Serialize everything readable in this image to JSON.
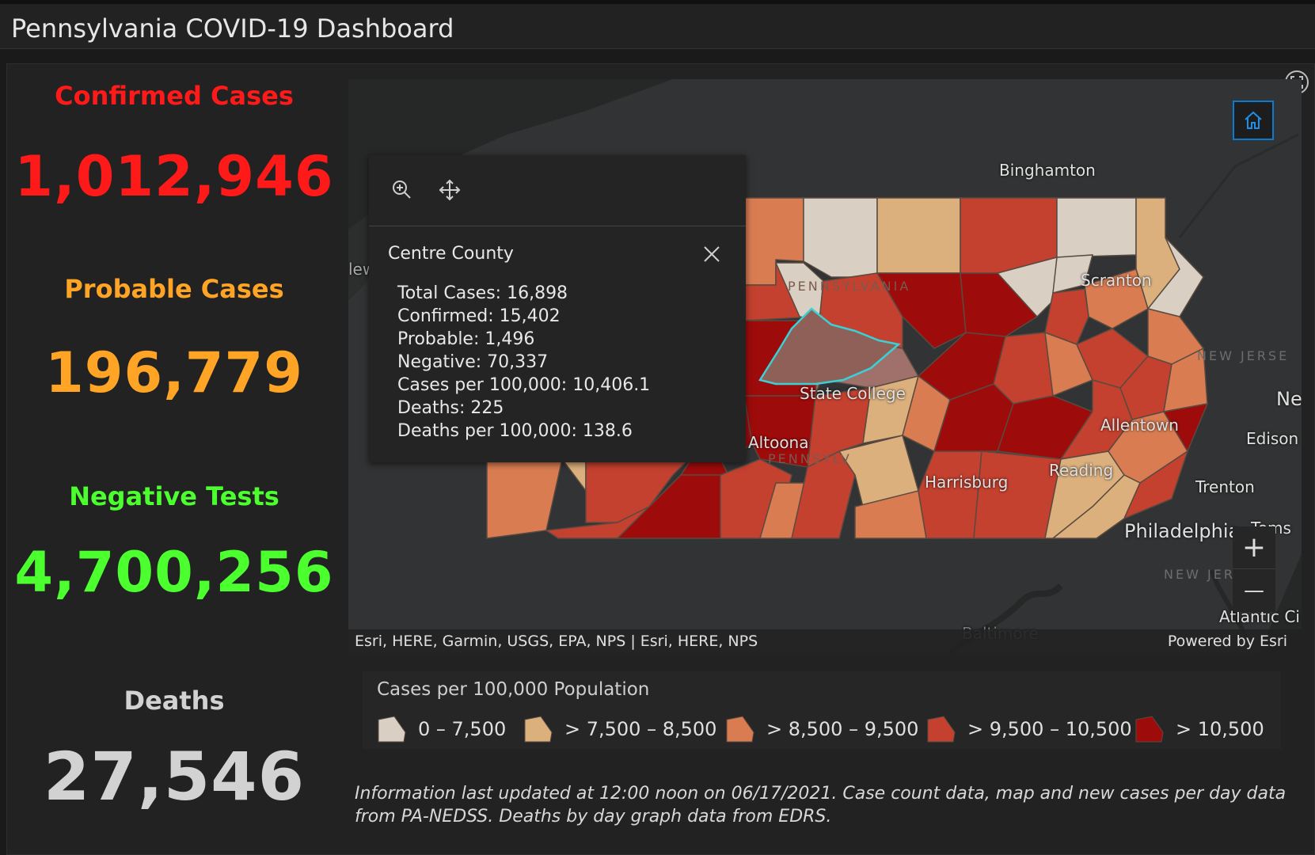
{
  "header": {
    "title": "Pennsylvania COVID-19 Dashboard"
  },
  "stats": [
    {
      "label": "Confirmed Cases",
      "value": "1,012,946",
      "color": "#ff1a1a"
    },
    {
      "label": "Probable Cases",
      "value": "196,779",
      "color": "#ffa424"
    },
    {
      "label": "Negative Tests",
      "value": "4,700,256",
      "color": "#4cff2e"
    },
    {
      "label": "Deaths",
      "value": "27,546",
      "color": "#d2d2d2"
    }
  ],
  "map": {
    "labels": {
      "binghamton": "Binghamton",
      "scranton": "Scranton",
      "state_college": "State College",
      "altoona": "Altoona",
      "harrisburg": "Harrisburg",
      "reading": "Reading",
      "allentown": "Allentown",
      "edison": "Edison",
      "trenton": "Trenton",
      "philadelphia": "Philadelphia",
      "baltimore": "Baltimore",
      "atlantic": "Atlantic Ci",
      "ne": "Ne",
      "toms": "Toms",
      "new_jersey_1": "NEW JERSE",
      "new_jersey_2": "NEW JER",
      "pennsylvania_1": "PENNSYLVANIA",
      "pennsylvania_2": "PENNSYLV",
      "lew": "lew"
    },
    "attribution_left": "Esri, HERE, Garmin, USGS, EPA, NPS | Esri, HERE, NPS",
    "attribution_right": "Powered by Esri",
    "zoom_in": "+",
    "zoom_out": "—",
    "icons": {
      "home": "home-icon",
      "expand": "expand-icon",
      "zoom_to": "zoom-in-icon",
      "pan": "move-icon",
      "close": "close-icon"
    }
  },
  "popup": {
    "title": "Centre County",
    "lines": [
      "Total Cases: 16,898",
      "Confirmed: 15,402",
      "Probable: 1,496",
      "Negative: 70,337",
      "Cases per 100,000: 10,406.1",
      "Deaths: 225",
      "Deaths per 100,000: 138.6"
    ]
  },
  "legend": {
    "title": "Cases per 100,000 Population",
    "items": [
      {
        "label": "0 – 7,500",
        "color": "#d9d0c3"
      },
      {
        "label": "> 7,500 – 8,500",
        "color": "#dcb07d"
      },
      {
        "label": "> 8,500 – 9,500",
        "color": "#d97c52"
      },
      {
        "label": "> 9,500 – 10,500",
        "color": "#c4402f"
      },
      {
        "label": "> 10,500",
        "color": "#9e0b0b"
      }
    ]
  },
  "note": {
    "line1": "Information last updated at 12:00 noon on 06/17/2021. Case count data, map and new cases per day data",
    "line2": "from PA-NEDSS.  Deaths by day graph data from EDRS."
  }
}
